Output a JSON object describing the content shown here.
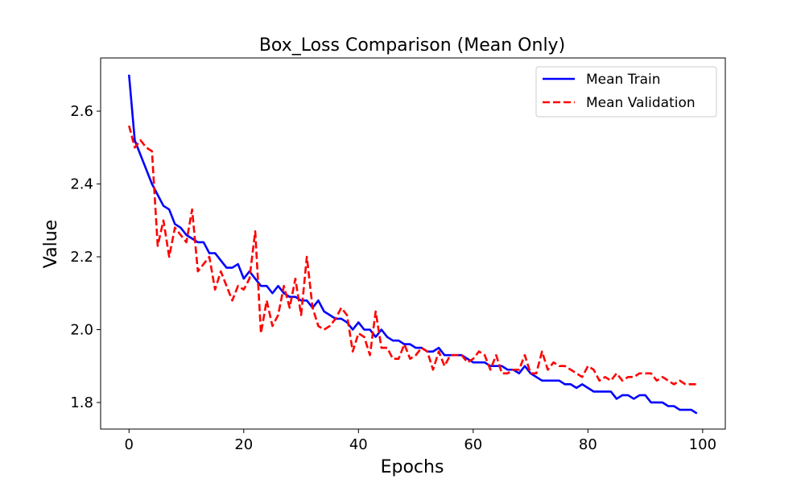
{
  "chart_data": {
    "type": "line",
    "title": "Box_Loss Comparison (Mean Only)",
    "xlabel": "Epochs",
    "ylabel": "Value",
    "xlim": [
      -4.95,
      103.95
    ],
    "ylim": [
      1.727,
      2.746
    ],
    "xticks": [
      0,
      20,
      40,
      60,
      80,
      100
    ],
    "yticks": [
      1.8,
      2.0,
      2.2,
      2.4,
      2.6
    ],
    "grid": false,
    "legend_position": "top-right",
    "series": [
      {
        "name": "Mean Train",
        "color": "#0000ff",
        "style": "solid",
        "x": [
          0,
          1,
          2,
          3,
          4,
          5,
          6,
          7,
          8,
          9,
          10,
          11,
          12,
          13,
          14,
          15,
          16,
          17,
          18,
          19,
          20,
          21,
          22,
          23,
          24,
          25,
          26,
          27,
          28,
          29,
          30,
          31,
          32,
          33,
          34,
          35,
          36,
          37,
          38,
          39,
          40,
          41,
          42,
          43,
          44,
          45,
          46,
          47,
          48,
          49,
          50,
          51,
          52,
          53,
          54,
          55,
          56,
          57,
          58,
          59,
          60,
          61,
          62,
          63,
          64,
          65,
          66,
          67,
          68,
          69,
          70,
          71,
          72,
          73,
          74,
          75,
          76,
          77,
          78,
          79,
          80,
          81,
          82,
          83,
          84,
          85,
          86,
          87,
          88,
          89,
          90,
          91,
          92,
          93,
          94,
          95,
          96,
          97,
          98,
          99
        ],
        "values": [
          2.7,
          2.52,
          2.48,
          2.44,
          2.4,
          2.37,
          2.34,
          2.33,
          2.29,
          2.28,
          2.26,
          2.25,
          2.24,
          2.24,
          2.21,
          2.21,
          2.19,
          2.17,
          2.17,
          2.18,
          2.14,
          2.16,
          2.14,
          2.12,
          2.12,
          2.1,
          2.12,
          2.1,
          2.09,
          2.09,
          2.08,
          2.08,
          2.06,
          2.08,
          2.05,
          2.04,
          2.03,
          2.03,
          2.02,
          2.0,
          2.02,
          2.0,
          2.0,
          1.98,
          2.0,
          1.98,
          1.97,
          1.97,
          1.96,
          1.96,
          1.95,
          1.95,
          1.94,
          1.94,
          1.95,
          1.93,
          1.93,
          1.93,
          1.93,
          1.92,
          1.91,
          1.91,
          1.91,
          1.9,
          1.9,
          1.9,
          1.89,
          1.89,
          1.88,
          1.9,
          1.88,
          1.87,
          1.86,
          1.86,
          1.86,
          1.86,
          1.85,
          1.85,
          1.84,
          1.85,
          1.84,
          1.83,
          1.83,
          1.83,
          1.83,
          1.81,
          1.82,
          1.82,
          1.81,
          1.82,
          1.82,
          1.8,
          1.8,
          1.8,
          1.79,
          1.79,
          1.78,
          1.78,
          1.78,
          1.77
        ]
      },
      {
        "name": "Mean Validation",
        "color": "#ff0000",
        "style": "dashed",
        "x": [
          0,
          1,
          2,
          3,
          4,
          5,
          6,
          7,
          8,
          9,
          10,
          11,
          12,
          13,
          14,
          15,
          16,
          17,
          18,
          19,
          20,
          21,
          22,
          23,
          24,
          25,
          26,
          27,
          28,
          29,
          30,
          31,
          32,
          33,
          34,
          35,
          36,
          37,
          38,
          39,
          40,
          41,
          42,
          43,
          44,
          45,
          46,
          47,
          48,
          49,
          50,
          51,
          52,
          53,
          54,
          55,
          56,
          57,
          58,
          59,
          60,
          61,
          62,
          63,
          64,
          65,
          66,
          67,
          68,
          69,
          70,
          71,
          72,
          73,
          74,
          75,
          76,
          77,
          78,
          79,
          80,
          81,
          82,
          83,
          84,
          85,
          86,
          87,
          88,
          89,
          90,
          91,
          92,
          93,
          94,
          95,
          96,
          97,
          98,
          99
        ],
        "values": [
          2.56,
          2.5,
          2.52,
          2.5,
          2.49,
          2.23,
          2.3,
          2.2,
          2.28,
          2.26,
          2.24,
          2.33,
          2.16,
          2.18,
          2.2,
          2.11,
          2.16,
          2.12,
          2.08,
          2.12,
          2.11,
          2.14,
          2.27,
          1.99,
          2.08,
          2.01,
          2.04,
          2.12,
          2.06,
          2.14,
          2.04,
          2.2,
          2.06,
          2.01,
          2.0,
          2.01,
          2.03,
          2.06,
          2.04,
          1.94,
          1.99,
          1.98,
          1.93,
          2.05,
          1.95,
          1.95,
          1.92,
          1.92,
          1.96,
          1.92,
          1.93,
          1.95,
          1.94,
          1.89,
          1.94,
          1.9,
          1.93,
          1.93,
          1.93,
          1.91,
          1.92,
          1.94,
          1.93,
          1.89,
          1.93,
          1.88,
          1.88,
          1.89,
          1.89,
          1.93,
          1.88,
          1.88,
          1.94,
          1.89,
          1.91,
          1.9,
          1.9,
          1.89,
          1.88,
          1.87,
          1.9,
          1.89,
          1.86,
          1.87,
          1.86,
          1.88,
          1.86,
          1.87,
          1.87,
          1.88,
          1.88,
          1.88,
          1.86,
          1.87,
          1.86,
          1.85,
          1.86,
          1.85,
          1.85,
          1.85
        ]
      }
    ]
  }
}
